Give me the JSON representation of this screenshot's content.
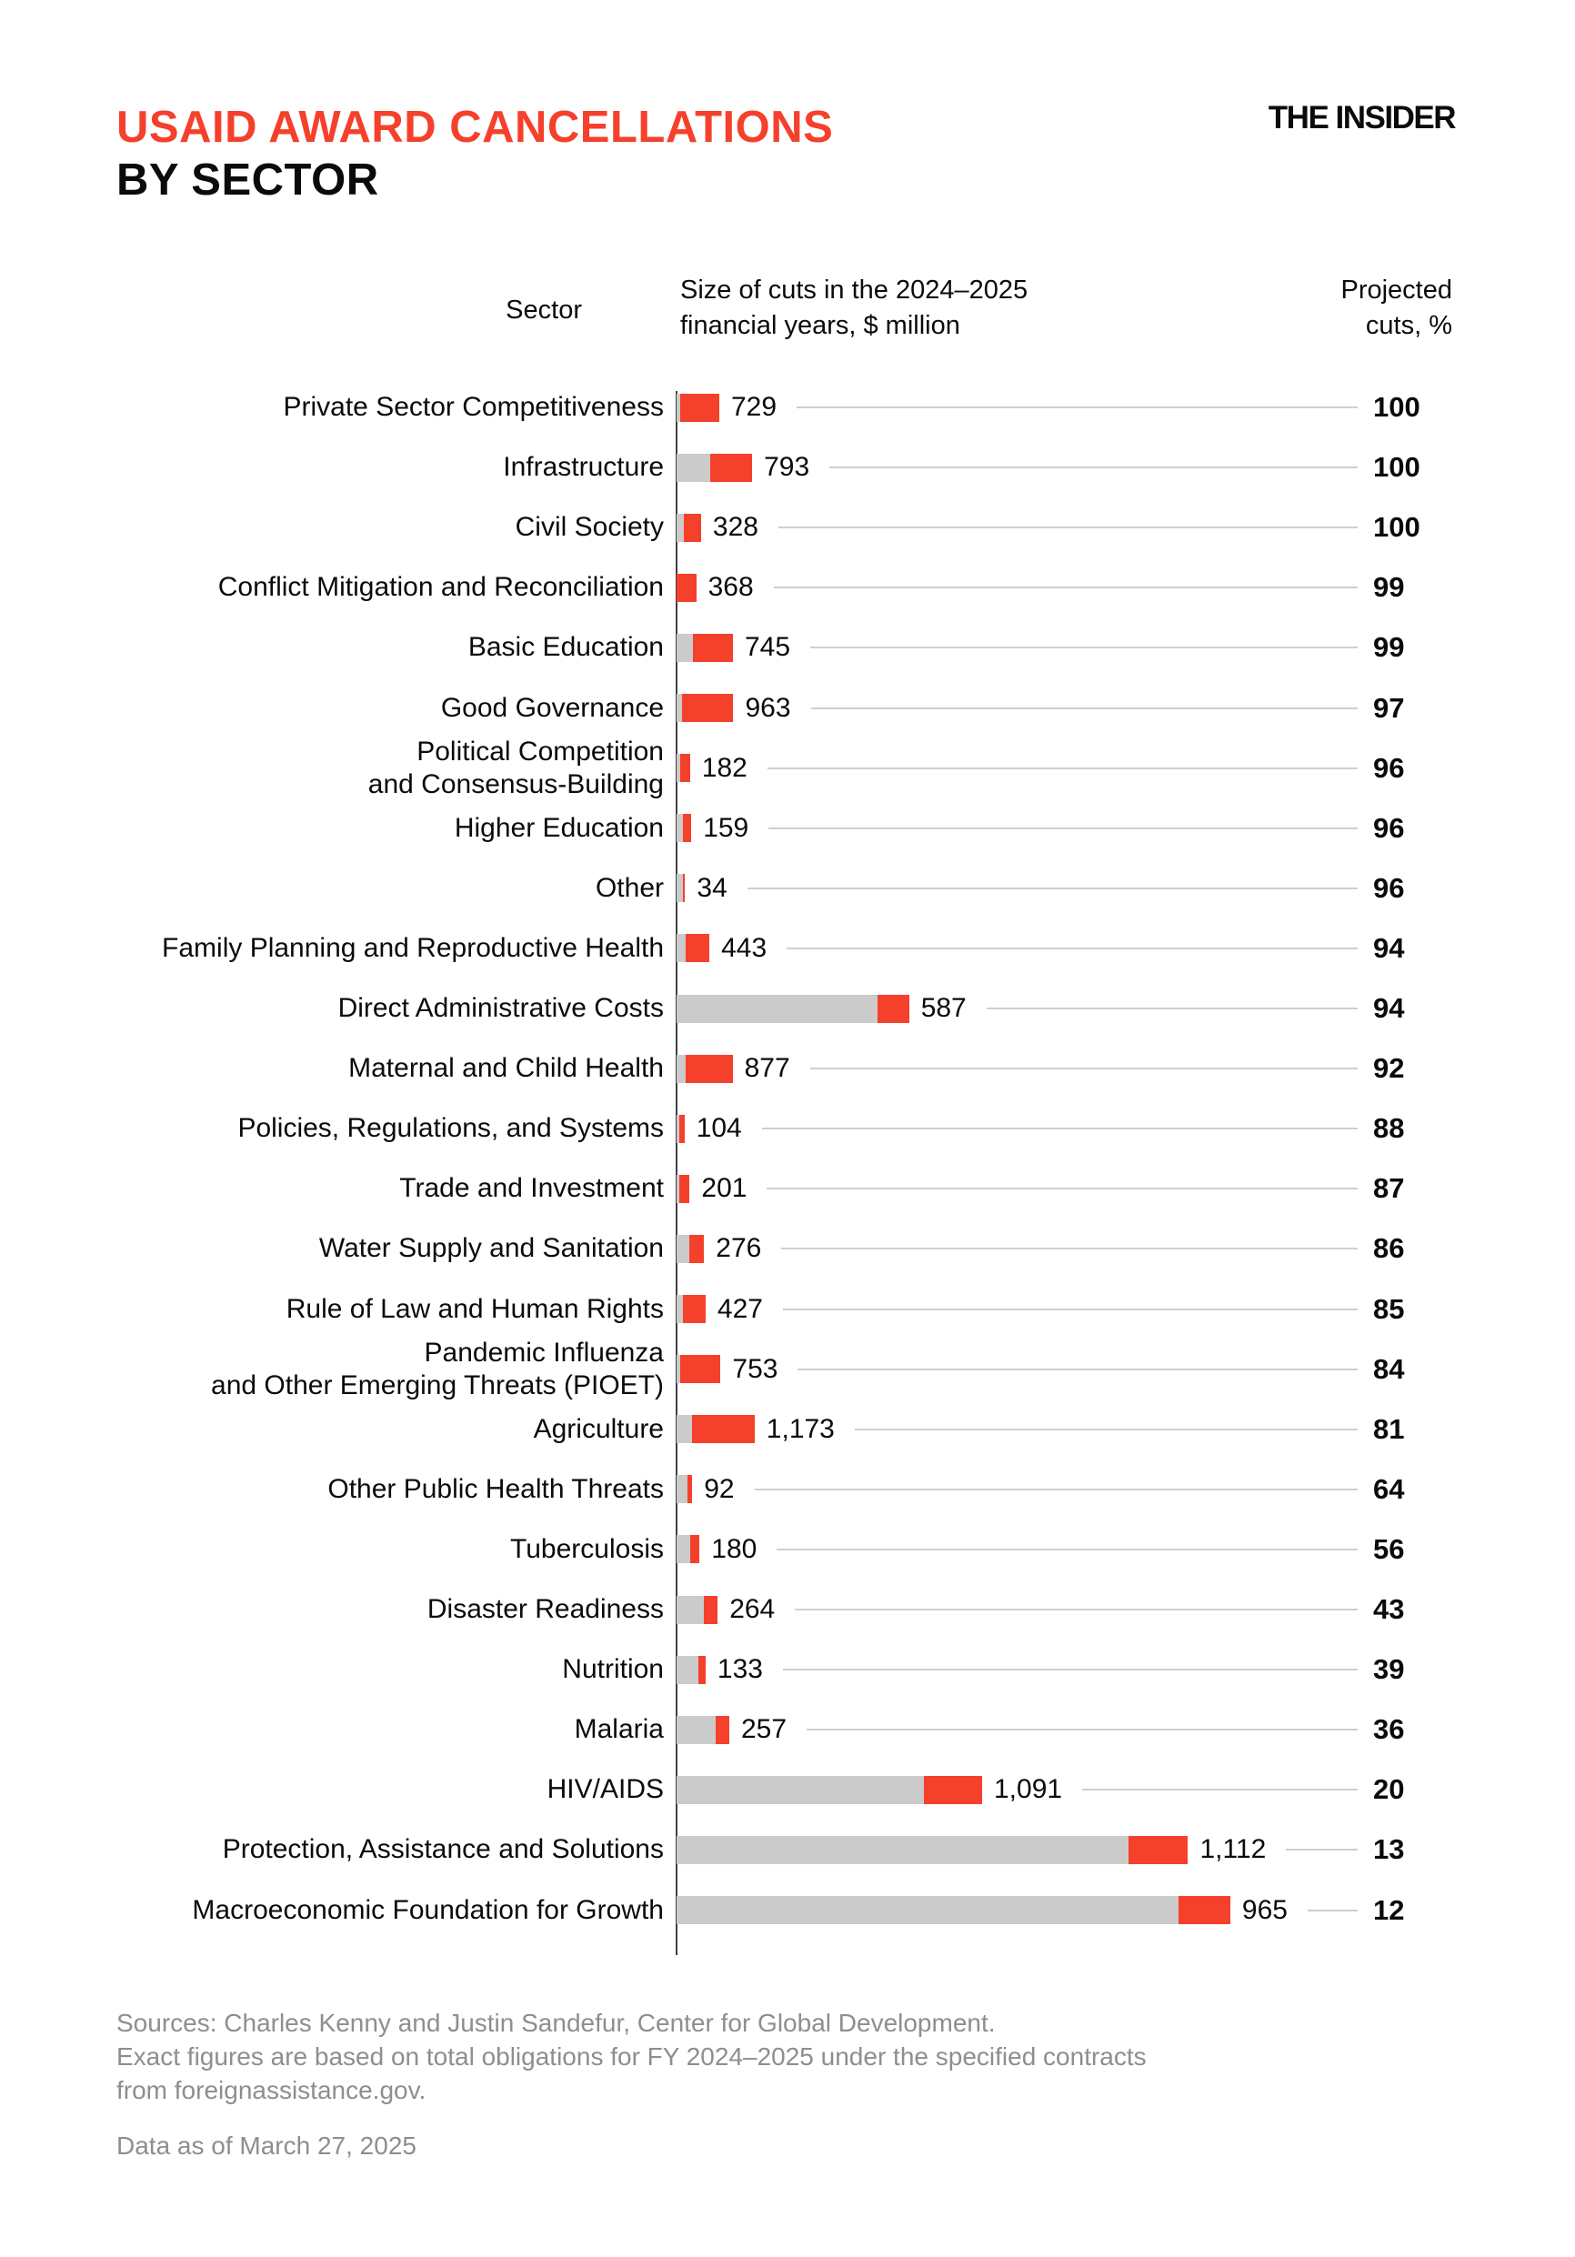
{
  "header": {
    "title_line1": "USAID AWARD CANCELLATIONS",
    "title_line2": "BY SECTOR",
    "logo": "THE INSIDER"
  },
  "table_headers": {
    "sector": "Sector",
    "size": "Size of cuts in the 2024–2025\nfinancial years, $ million",
    "projected": "Projected\ncuts, %"
  },
  "colors": {
    "accent_red": "#F5402C",
    "bar_gray": "#CBCBCB",
    "leader_line": "#CFCFCF",
    "axis": "#3F3F3F",
    "footer_text": "#8E8E8E"
  },
  "chart_data": {
    "type": "bar",
    "orientation": "horizontal",
    "value_unit": "$ million",
    "title": "USAID AWARD CANCELLATIONS BY SECTOR",
    "series": [
      {
        "sector": "Private Sector Competitiveness",
        "cuts": 729,
        "cuts_label": "729",
        "projected_pct": 100,
        "gray_segment_est": 70
      },
      {
        "sector": "Infrastructure",
        "cuts": 793,
        "cuts_label": "793",
        "projected_pct": 100,
        "gray_segment_est": 620
      },
      {
        "sector": "Civil Society",
        "cuts": 328,
        "cuts_label": "328",
        "projected_pct": 100,
        "gray_segment_est": 130
      },
      {
        "sector": "Conflict Mitigation and Reconciliation",
        "cuts": 368,
        "cuts_label": "368",
        "projected_pct": 99,
        "gray_segment_est": 0
      },
      {
        "sector": "Basic Education",
        "cuts": 745,
        "cuts_label": "745",
        "projected_pct": 99,
        "gray_segment_est": 310
      },
      {
        "sector": "Good Governance",
        "cuts": 963,
        "cuts_label": "963",
        "projected_pct": 97,
        "gray_segment_est": 100
      },
      {
        "sector": "Political Competition\nand Consensus-Building",
        "cuts": 182,
        "cuts_label": "182",
        "projected_pct": 96,
        "gray_segment_est": 70
      },
      {
        "sector": "Higher Education",
        "cuts": 159,
        "cuts_label": "159",
        "projected_pct": 96,
        "gray_segment_est": 115
      },
      {
        "sector": "Other",
        "cuts": 34,
        "cuts_label": "34",
        "projected_pct": 96,
        "gray_segment_est": 125
      },
      {
        "sector": "Family Planning and Reproductive Health",
        "cuts": 443,
        "cuts_label": "443",
        "projected_pct": 94,
        "gray_segment_est": 170
      },
      {
        "sector": "Direct Administrative Costs",
        "cuts": 587,
        "cuts_label": "587",
        "projected_pct": 94,
        "gray_segment_est": 3760
      },
      {
        "sector": "Maternal and Child Health",
        "cuts": 877,
        "cuts_label": "877",
        "projected_pct": 92,
        "gray_segment_est": 170
      },
      {
        "sector": "Policies, Regulations, and Systems",
        "cuts": 104,
        "cuts_label": "104",
        "projected_pct": 88,
        "gray_segment_est": 45
      },
      {
        "sector": "Trade and Investment",
        "cuts": 201,
        "cuts_label": "201",
        "projected_pct": 87,
        "gray_segment_est": 45
      },
      {
        "sector": "Water Supply and Sanitation",
        "cuts": 276,
        "cuts_label": "276",
        "projected_pct": 86,
        "gray_segment_est": 240
      },
      {
        "sector": "Rule of Law and Human Rights",
        "cuts": 427,
        "cuts_label": "427",
        "projected_pct": 85,
        "gray_segment_est": 115
      },
      {
        "sector": "Pandemic Influenza\nand Other Emerging Threats (PIOET)",
        "cuts": 753,
        "cuts_label": "753",
        "projected_pct": 84,
        "gray_segment_est": 70
      },
      {
        "sector": "Agriculture",
        "cuts": 1173,
        "cuts_label": "1,173",
        "projected_pct": 81,
        "gray_segment_est": 285
      },
      {
        "sector": "Other Public Health Threats",
        "cuts": 92,
        "cuts_label": "92",
        "projected_pct": 64,
        "gray_segment_est": 200
      },
      {
        "sector": "Tuberculosis",
        "cuts": 180,
        "cuts_label": "180",
        "projected_pct": 56,
        "gray_segment_est": 250
      },
      {
        "sector": "Disaster Readiness",
        "cuts": 264,
        "cuts_label": "264",
        "projected_pct": 43,
        "gray_segment_est": 505
      },
      {
        "sector": "Nutrition",
        "cuts": 133,
        "cuts_label": "133",
        "projected_pct": 39,
        "gray_segment_est": 410
      },
      {
        "sector": "Malaria",
        "cuts": 257,
        "cuts_label": "257",
        "projected_pct": 36,
        "gray_segment_est": 730
      },
      {
        "sector": "HIV/AIDS",
        "cuts": 1091,
        "cuts_label": "1,091",
        "projected_pct": 20,
        "gray_segment_est": 4620
      },
      {
        "sector": "Protection, Assistance and Solutions",
        "cuts": 1112,
        "cuts_label": "1,112",
        "projected_pct": 13,
        "gray_segment_est": 8450
      },
      {
        "sector": "Macroeconomic Foundation for Growth",
        "cuts": 965,
        "cuts_label": "965",
        "projected_pct": 12,
        "gray_segment_est": 9385
      }
    ]
  },
  "footer": {
    "sources": "Sources: Charles Kenny and Justin Sandefur, Center for Global Development.\nExact figures are based on total obligations for FY 2024–2025 under the specified contracts\nfrom foreignassistance.gov.",
    "data_note": "Data as of March 27, 2025"
  }
}
